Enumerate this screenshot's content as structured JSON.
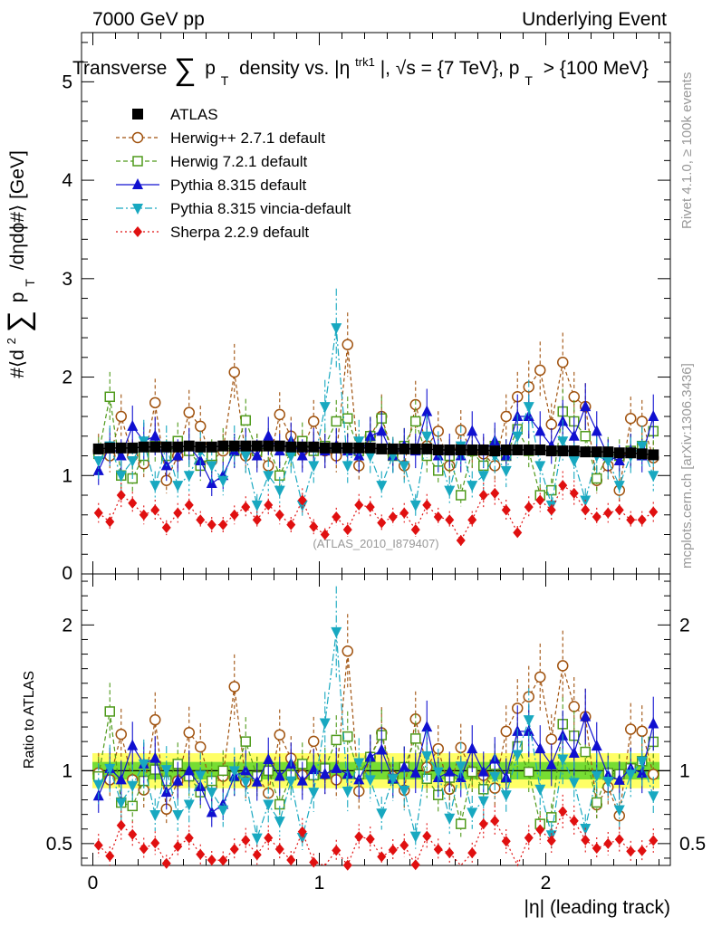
{
  "header": {
    "left": "7000 GeV pp",
    "right": "Underlying Event"
  },
  "title": {
    "part1": "Transverse",
    "sum": "∑",
    "part2": "p",
    "sub_T": "T",
    "part3": "density vs. |η",
    "sup_trk1": "trk1",
    "part4": "|, √s = {7 TeV}, p",
    "sub_T2": "T",
    "part5": "> {100 MeV}"
  },
  "ylabel_top": {
    "prefix": "#⟨d",
    "sq": "2",
    "sum": "∑",
    "p": "p",
    "sub_T": "T",
    "rest": "/dηdϕ#⟩ [GeV]"
  },
  "ylabel_bottom": "Ratio to ATLAS",
  "xlabel": "|η| (leading track)",
  "side_right_top": "Rivet 4.1.0, ≥ 100k events",
  "side_right_bottom": "mcplots.cern.ch [arXiv:1306.3436]",
  "watermark": "(ATLAS_2010_I879407)",
  "colors": {
    "atlas": "#000000",
    "herwigpp": "#a0520e",
    "herwig7": "#4f9a1b",
    "pythia": "#1010d0",
    "vincia": "#18a8c0",
    "sherpa": "#e01010",
    "band_outer": "#ffff66",
    "band_inner": "#77dd33"
  },
  "chart_data": [
    {
      "type": "scatter",
      "panel": "main",
      "xlabel": "|η| (leading track)",
      "ylabel": "#⟨d²∑p_T/dηdϕ#⟩ [GeV]",
      "xlim": [
        -0.05,
        2.55
      ],
      "ylim": [
        0,
        5.5
      ],
      "xticks": [
        0,
        1,
        2
      ],
      "xtick_labels": [
        "0",
        "1",
        "2"
      ],
      "yticks": [
        1,
        2,
        3,
        4,
        5
      ],
      "ytick_labels": [
        "1",
        "2",
        "3",
        "4",
        "5"
      ],
      "x": [
        0.025,
        0.075,
        0.125,
        0.175,
        0.225,
        0.275,
        0.325,
        0.375,
        0.425,
        0.475,
        0.525,
        0.575,
        0.625,
        0.675,
        0.725,
        0.775,
        0.825,
        0.875,
        0.925,
        0.975,
        1.025,
        1.075,
        1.125,
        1.175,
        1.225,
        1.275,
        1.325,
        1.375,
        1.425,
        1.475,
        1.525,
        1.575,
        1.625,
        1.675,
        1.725,
        1.775,
        1.825,
        1.875,
        1.925,
        1.975,
        2.025,
        2.075,
        2.125,
        2.175,
        2.225,
        2.275,
        2.325,
        2.375,
        2.425,
        2.475
      ],
      "series": [
        {
          "name": "ATLAS",
          "marker": "square",
          "values": [
            1.27,
            1.28,
            1.28,
            1.28,
            1.29,
            1.29,
            1.29,
            1.29,
            1.3,
            1.29,
            1.29,
            1.3,
            1.3,
            1.3,
            1.3,
            1.3,
            1.3,
            1.29,
            1.29,
            1.29,
            1.28,
            1.28,
            1.28,
            1.28,
            1.28,
            1.27,
            1.27,
            1.27,
            1.27,
            1.27,
            1.26,
            1.26,
            1.26,
            1.26,
            1.26,
            1.25,
            1.26,
            1.26,
            1.26,
            1.26,
            1.25,
            1.25,
            1.25,
            1.24,
            1.24,
            1.24,
            1.23,
            1.23,
            1.22,
            1.21
          ]
        },
        {
          "name": "Herwig++ 2.7.1 default",
          "marker": "open-circle",
          "values": [
            1.25,
            1.2,
            1.6,
            1.2,
            1.12,
            1.74,
            0.95,
            1.2,
            1.64,
            1.5,
            1.15,
            1.25,
            2.05,
            1.2,
            1.25,
            1.1,
            1.62,
            1.4,
            1.25,
            1.55,
            1.25,
            1.2,
            2.33,
            1.1,
            1.4,
            1.6,
            1.22,
            1.1,
            1.72,
            1.3,
            1.45,
            1.1,
            1.46,
            1.25,
            1.22,
            1.1,
            1.6,
            1.8,
            1.9,
            2.07,
            1.52,
            2.15,
            1.8,
            1.7,
            0.95,
            1.1,
            0.85,
            1.58,
            1.55,
            1.18
          ]
        },
        {
          "name": "Herwig 7.2.1 default",
          "marker": "open-square",
          "values": [
            1.22,
            1.8,
            1.0,
            0.97,
            1.2,
            1.3,
            1.2,
            1.35,
            1.25,
            1.1,
            1.2,
            1.3,
            1.25,
            1.56,
            1.25,
            1.3,
            1.0,
            1.25,
            1.35,
            1.25,
            1.3,
            1.55,
            1.58,
            1.25,
            1.4,
            1.58,
            1.2,
            1.3,
            1.55,
            1.2,
            1.05,
            1.2,
            0.8,
            1.25,
            1.1,
            1.3,
            1.2,
            1.47,
            1.25,
            0.8,
            0.85,
            1.65,
            1.55,
            1.4,
            0.97,
            1.22,
            1.2,
            1.25,
            1.3,
            1.45
          ]
        },
        {
          "name": "Pythia 8.315 default",
          "marker": "triangle-up",
          "values": [
            1.05,
            1.3,
            1.2,
            1.5,
            1.35,
            1.4,
            1.1,
            1.2,
            1.3,
            1.15,
            0.92,
            1.0,
            1.25,
            1.3,
            1.2,
            1.4,
            1.25,
            1.35,
            1.2,
            1.3,
            1.25,
            1.3,
            1.25,
            1.2,
            1.4,
            1.45,
            1.2,
            1.3,
            1.25,
            1.65,
            1.2,
            1.25,
            1.2,
            1.45,
            1.25,
            1.35,
            1.2,
            1.6,
            1.6,
            1.45,
            1.3,
            1.55,
            1.4,
            1.7,
            1.45,
            1.2,
            1.15,
            1.25,
            1.2,
            1.6
          ]
        },
        {
          "name": "Pythia 8.315 vincia-default",
          "marker": "triangle-down",
          "values": [
            1.15,
            1.3,
            1.0,
            1.15,
            1.35,
            0.9,
            1.3,
            0.9,
            1.0,
            1.25,
            1.1,
            0.95,
            1.3,
            1.2,
            0.7,
            1.0,
            0.85,
            1.2,
            0.7,
            1.1,
            1.7,
            2.5,
            1.1,
            1.35,
            1.2,
            0.9,
            1.2,
            1.1,
            0.7,
            1.4,
            1.25,
            0.85,
            1.3,
            0.9,
            1.0,
            1.2,
            1.05,
            1.4,
            1.7,
            1.1,
            0.7,
            1.35,
            1.15,
            0.75,
            1.2,
            1.15,
            0.9,
            1.2,
            1.3,
            1.0
          ]
        },
        {
          "name": "Sherpa 2.2.9 default",
          "marker": "diamond",
          "values": [
            0.62,
            0.53,
            0.8,
            0.72,
            0.6,
            0.65,
            0.47,
            0.62,
            0.7,
            0.55,
            0.5,
            0.5,
            0.6,
            0.68,
            0.55,
            0.7,
            0.6,
            0.5,
            0.75,
            0.48,
            0.4,
            0.58,
            0.45,
            0.7,
            0.68,
            0.52,
            0.58,
            0.62,
            0.45,
            0.7,
            0.58,
            0.55,
            0.34,
            0.55,
            0.8,
            0.82,
            0.65,
            0.42,
            0.68,
            0.75,
            0.65,
            0.9,
            0.82,
            0.65,
            0.58,
            0.62,
            0.65,
            0.55,
            0.55,
            0.63
          ]
        }
      ]
    },
    {
      "type": "scatter",
      "panel": "ratio",
      "ylabel": "Ratio to ATLAS",
      "xlim": [
        -0.05,
        2.55
      ],
      "ylim": [
        0.35,
        2.35
      ],
      "xticks": [
        0,
        1,
        2
      ],
      "xtick_labels": [
        "0",
        "1",
        "2"
      ],
      "yticks": [
        0.5,
        1,
        2
      ],
      "ytick_labels": [
        "0.5",
        "1",
        "2"
      ],
      "band_outer": [
        0.88,
        1.12
      ],
      "band_inner": [
        0.94,
        1.06
      ],
      "reference": 1
    }
  ]
}
